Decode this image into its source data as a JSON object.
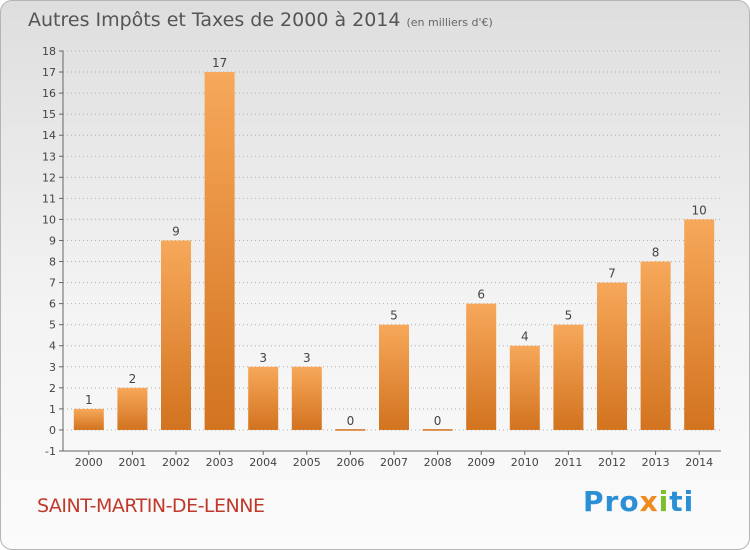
{
  "header": {
    "title": "Autres Impôts et Taxes de 2000 à 2014",
    "unit": "(en milliers d'€)"
  },
  "footer": {
    "commune": "SAINT-MARTIN-DE-LENNE",
    "logo_parts": [
      "Pro",
      "x",
      "i",
      "ti"
    ]
  },
  "colors": {
    "bar_light": "#f7a85a",
    "bar_dark": "#d2731f",
    "grid": "#b0b0b0",
    "commune": "#c0392b",
    "logo_blue": "#2b8fd6",
    "logo_orange": "#f08a1c",
    "logo_green": "#7cbf2a"
  },
  "chart_data": {
    "type": "bar",
    "title": "Autres Impôts et Taxes de 2000 à 2014",
    "subtitle": "(en milliers d'€)",
    "categories": [
      "2000",
      "2001",
      "2002",
      "2003",
      "2004",
      "2005",
      "2006",
      "2007",
      "2008",
      "2009",
      "2010",
      "2011",
      "2012",
      "2013",
      "2014"
    ],
    "values": [
      1,
      2,
      9,
      17,
      3,
      3,
      0,
      5,
      0,
      6,
      4,
      5,
      7,
      8,
      10
    ],
    "xlabel": "",
    "ylabel": "",
    "ylim": [
      -1,
      18
    ],
    "yticks": [
      -1,
      0,
      1,
      2,
      3,
      4,
      5,
      6,
      7,
      8,
      9,
      10,
      11,
      12,
      13,
      14,
      15,
      16,
      17,
      18
    ],
    "grid": true,
    "grid_style": "dotted horizontal"
  }
}
